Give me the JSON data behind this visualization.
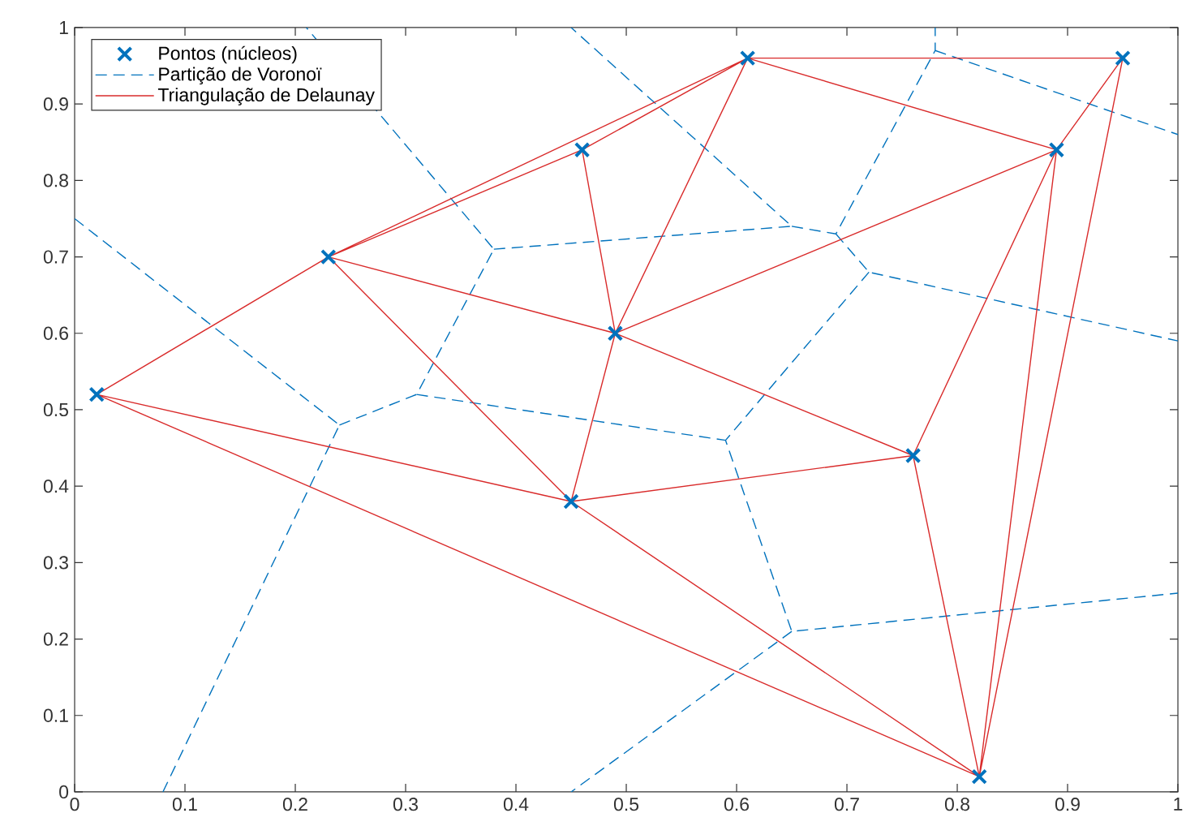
{
  "chart_data": {
    "type": "scatter",
    "xlim": [
      0,
      1
    ],
    "ylim": [
      0,
      1
    ],
    "xticks": [
      0,
      0.1,
      0.2,
      0.3,
      0.4,
      0.5,
      0.6,
      0.7,
      0.8,
      0.9,
      1
    ],
    "yticks": [
      0,
      0.1,
      0.2,
      0.3,
      0.4,
      0.5,
      0.6,
      0.7,
      0.8,
      0.9,
      1
    ],
    "grid": false,
    "legend": "top left",
    "series": [
      {
        "name": "Pontos (núcleos)",
        "marker": "cross",
        "color": "#0072bd",
        "x": [
          0.02,
          0.23,
          0.46,
          0.49,
          0.61,
          0.95,
          0.89,
          0.45,
          0.76,
          0.82
        ],
        "values": [
          0.52,
          0.7,
          0.84,
          0.6,
          0.96,
          0.96,
          0.84,
          0.38,
          0.44,
          0.02
        ]
      },
      {
        "name": "Partição de Voronoï",
        "type": "line",
        "marker": "none",
        "line_style": "dashed",
        "color": "#0072bd",
        "x": [
          0,
          0.24,
          0.08,
          null,
          0.24,
          0.31,
          0.38,
          0.21,
          null,
          0.38,
          0.65,
          0.45,
          null,
          0.65,
          0.69,
          0.78,
          0.78,
          null,
          0.78,
          1,
          null,
          0.69,
          0.72,
          1,
          null,
          0.72,
          0.59,
          0.65,
          1,
          null,
          0.31,
          0.59,
          null,
          0.65,
          0.45
        ],
        "values": [
          0.75,
          0.48,
          0,
          null,
          0.48,
          0.52,
          0.71,
          1,
          null,
          0.71,
          0.74,
          1,
          null,
          0.74,
          0.73,
          0.97,
          1,
          null,
          0.97,
          0.86,
          null,
          0.73,
          0.68,
          0.59,
          null,
          0.68,
          0.46,
          0.21,
          0.26,
          null,
          0.52,
          0.46,
          null,
          0.21,
          0
        ]
      },
      {
        "name": "Triangulação de Delaunay",
        "type": "line",
        "marker": "none",
        "line_style": "solid",
        "color": "#d92b2b",
        "x": [
          0.02,
          0.23,
          null,
          0.02,
          0.45,
          null,
          0.02,
          0.82,
          null,
          0.23,
          0.46,
          null,
          0.23,
          0.61,
          null,
          0.23,
          0.49,
          null,
          0.23,
          0.45,
          null,
          0.46,
          0.61,
          null,
          0.46,
          0.49,
          null,
          0.49,
          0.61,
          null,
          0.49,
          0.89,
          null,
          0.45,
          0.49,
          null,
          0.49,
          0.76,
          null,
          0.61,
          0.95,
          null,
          0.61,
          0.89,
          null,
          0.89,
          0.95,
          null,
          0.82,
          0.95,
          null,
          0.82,
          0.89,
          null,
          0.76,
          0.89,
          null,
          0.45,
          0.76,
          null,
          0.45,
          0.82,
          null,
          0.76,
          0.82
        ],
        "values": [
          0.52,
          0.7,
          null,
          0.52,
          0.38,
          null,
          0.52,
          0.02,
          null,
          0.7,
          0.84,
          null,
          0.7,
          0.96,
          null,
          0.7,
          0.6,
          null,
          0.7,
          0.38,
          null,
          0.84,
          0.96,
          null,
          0.84,
          0.6,
          null,
          0.6,
          0.96,
          null,
          0.6,
          0.84,
          null,
          0.38,
          0.6,
          null,
          0.6,
          0.44,
          null,
          0.96,
          0.96,
          null,
          0.96,
          0.84,
          null,
          0.84,
          0.96,
          null,
          0.02,
          0.96,
          null,
          0.02,
          0.84,
          null,
          0.44,
          0.84,
          null,
          0.38,
          0.44,
          null,
          0.38,
          0.02,
          null,
          0.44,
          0.02
        ]
      }
    ]
  }
}
